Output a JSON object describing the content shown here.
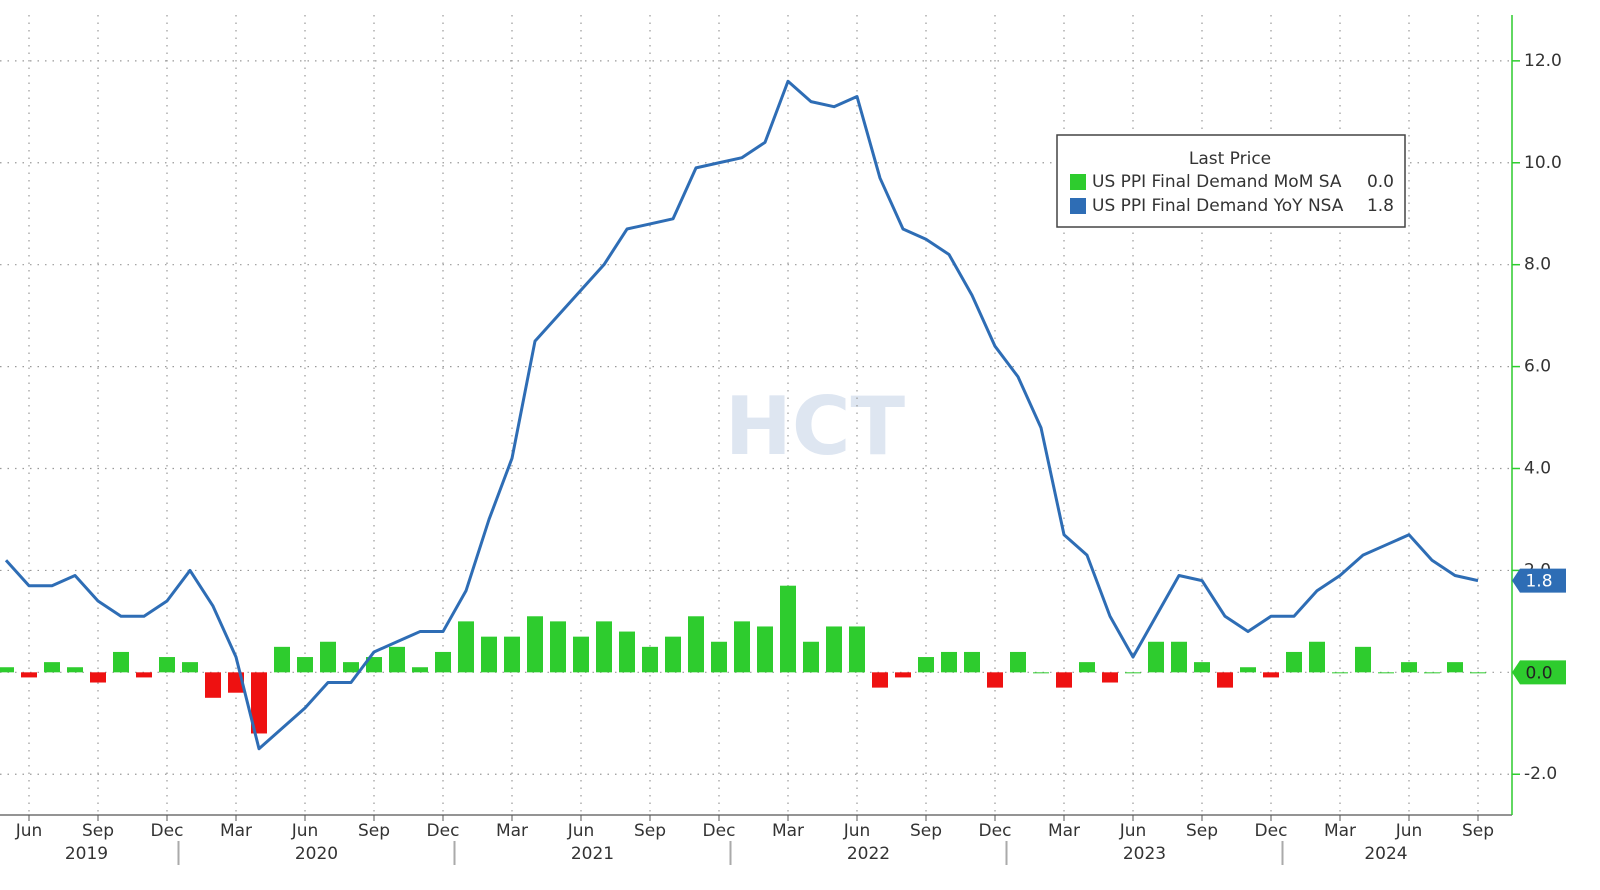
{
  "chart_data": {
    "type": "bar_line",
    "watermark": "HCT",
    "legend_title": "Last Price",
    "x": [
      "2019-05",
      "2019-06",
      "2019-07",
      "2019-08",
      "2019-09",
      "2019-10",
      "2019-11",
      "2019-12",
      "2020-01",
      "2020-02",
      "2020-03",
      "2020-04",
      "2020-05",
      "2020-06",
      "2020-07",
      "2020-08",
      "2020-09",
      "2020-10",
      "2020-11",
      "2020-12",
      "2021-01",
      "2021-02",
      "2021-03",
      "2021-04",
      "2021-05",
      "2021-06",
      "2021-07",
      "2021-08",
      "2021-09",
      "2021-10",
      "2021-11",
      "2021-12",
      "2022-01",
      "2022-02",
      "2022-03",
      "2022-04",
      "2022-05",
      "2022-06",
      "2022-07",
      "2022-08",
      "2022-09",
      "2022-10",
      "2022-11",
      "2022-12",
      "2023-01",
      "2023-02",
      "2023-03",
      "2023-04",
      "2023-05",
      "2023-06",
      "2023-07",
      "2023-08",
      "2023-09",
      "2023-10",
      "2023-11",
      "2023-12",
      "2024-01",
      "2024-02",
      "2024-03",
      "2024-04",
      "2024-05",
      "2024-06",
      "2024-07",
      "2024-08",
      "2024-09"
    ],
    "xticks": [
      {
        "value": "2019-06",
        "label": "Jun"
      },
      {
        "value": "2019-09",
        "label": "Sep"
      },
      {
        "value": "2019-12",
        "label": "Dec"
      },
      {
        "value": "2020-03",
        "label": "Mar"
      },
      {
        "value": "2020-06",
        "label": "Jun"
      },
      {
        "value": "2020-09",
        "label": "Sep"
      },
      {
        "value": "2020-12",
        "label": "Dec"
      },
      {
        "value": "2021-03",
        "label": "Mar"
      },
      {
        "value": "2021-06",
        "label": "Jun"
      },
      {
        "value": "2021-09",
        "label": "Sep"
      },
      {
        "value": "2021-12",
        "label": "Dec"
      },
      {
        "value": "2022-03",
        "label": "Mar"
      },
      {
        "value": "2022-06",
        "label": "Jun"
      },
      {
        "value": "2022-09",
        "label": "Sep"
      },
      {
        "value": "2022-12",
        "label": "Dec"
      },
      {
        "value": "2023-03",
        "label": "Mar"
      },
      {
        "value": "2023-06",
        "label": "Jun"
      },
      {
        "value": "2023-09",
        "label": "Sep"
      },
      {
        "value": "2023-12",
        "label": "Dec"
      },
      {
        "value": "2024-03",
        "label": "Mar"
      },
      {
        "value": "2024-06",
        "label": "Jun"
      },
      {
        "value": "2024-09",
        "label": "Sep"
      }
    ],
    "years": [
      "2019",
      "2020",
      "2021",
      "2022",
      "2023",
      "2024"
    ],
    "ylim": [
      -2.8,
      12.9
    ],
    "yticks": [
      {
        "value": -2,
        "label": "-2.0"
      },
      {
        "value": 0,
        "label": "0.0"
      },
      {
        "value": 2,
        "label": "2.0"
      },
      {
        "value": 4,
        "label": "4.0"
      },
      {
        "value": 6,
        "label": "6.0"
      },
      {
        "value": 8,
        "label": "8.0"
      },
      {
        "value": 10,
        "label": "10.0"
      },
      {
        "value": 12,
        "label": "12.0"
      }
    ],
    "grid": true,
    "series": [
      {
        "name": "US PPI Final Demand MoM SA",
        "kind": "bar",
        "color": "#2ecc2e",
        "negative_color": "#ee1111",
        "last_label": "0.0",
        "values": [
          0.1,
          -0.1,
          0.2,
          0.1,
          -0.2,
          0.4,
          -0.1,
          0.3,
          0.2,
          -0.5,
          -0.4,
          -1.2,
          0.5,
          0.3,
          0.6,
          0.2,
          0.3,
          0.5,
          0.1,
          0.4,
          1.0,
          0.7,
          0.7,
          1.1,
          1.0,
          0.7,
          1.0,
          0.8,
          0.5,
          0.7,
          1.1,
          0.6,
          1.0,
          0.9,
          1.7,
          0.6,
          0.9,
          0.9,
          -0.3,
          -0.1,
          0.3,
          0.4,
          0.4,
          -0.3,
          0.4,
          0.0,
          -0.3,
          0.2,
          -0.2,
          0.0,
          0.6,
          0.6,
          0.2,
          -0.3,
          0.1,
          -0.1,
          0.4,
          0.6,
          0.0,
          0.5,
          0.0,
          0.2,
          0.0,
          0.2,
          0.0
        ]
      },
      {
        "name": "US PPI Final Demand YoY NSA",
        "kind": "line",
        "color": "#2e6db5",
        "last_label": "1.8",
        "values": [
          2.2,
          1.7,
          1.7,
          1.9,
          1.4,
          1.1,
          1.1,
          1.4,
          2.0,
          1.3,
          0.3,
          -1.5,
          -1.1,
          -0.7,
          -0.2,
          -0.2,
          0.4,
          0.6,
          0.8,
          0.8,
          1.6,
          3.0,
          4.2,
          6.5,
          7.0,
          7.5,
          8.0,
          8.7,
          8.8,
          8.9,
          9.9,
          10.0,
          10.1,
          10.4,
          11.6,
          11.2,
          11.1,
          11.3,
          9.7,
          8.7,
          8.5,
          8.2,
          7.4,
          6.4,
          5.8,
          4.8,
          2.7,
          2.3,
          1.1,
          0.3,
          1.1,
          1.9,
          1.8,
          1.1,
          0.8,
          1.1,
          1.1,
          1.6,
          1.9,
          2.3,
          2.5,
          2.7,
          2.2,
          1.9,
          1.8
        ]
      }
    ]
  }
}
